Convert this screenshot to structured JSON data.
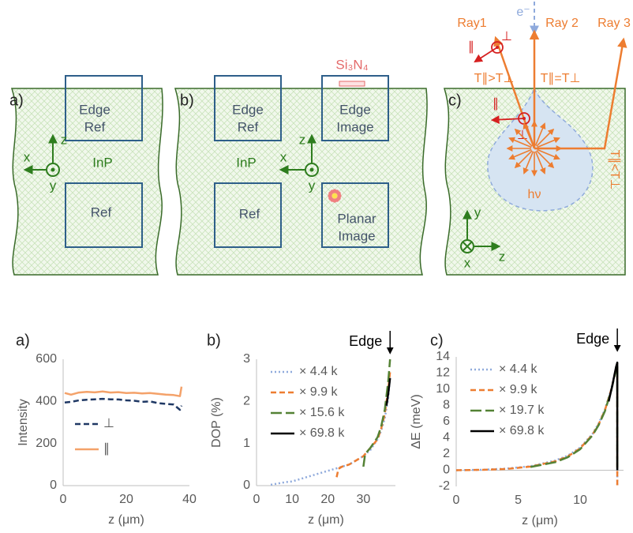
{
  "diagrams": {
    "panel_a": {
      "label": "a)",
      "edge_ref": [
        "Edge",
        "Ref"
      ],
      "ref": "Ref",
      "material": "InP",
      "axes": [
        "x",
        "y",
        "z"
      ]
    },
    "panel_b": {
      "label": "b)",
      "edge_ref": [
        "Edge",
        "Ref"
      ],
      "edge_image": [
        "Edge",
        "Image"
      ],
      "ref": "Ref",
      "planar_image": [
        "Planar",
        "Image"
      ],
      "material": "InP",
      "coating": "Si₃N₄",
      "axes": [
        "x",
        "y",
        "z"
      ]
    },
    "panel_c": {
      "label": "c)",
      "electron": "e⁻",
      "rays": [
        "Ray1",
        "Ray 2",
        "Ray 3"
      ],
      "transmission": [
        "T∥>T⊥",
        "T∥=T⊥",
        "T∥<T⊥"
      ],
      "parallel": "∥",
      "perpendicular": "⊥",
      "emission": "hν",
      "axes": [
        "x",
        "y",
        "z"
      ]
    }
  },
  "chart_data": [
    {
      "type": "line",
      "panel_label": "a)",
      "y_label": "Intensity",
      "x_label": "z (μm)",
      "xlim": [
        0,
        40
      ],
      "xticks": [
        0,
        20,
        40
      ],
      "ylim": [
        0,
        600
      ],
      "yticks": [
        0,
        200,
        400,
        600
      ],
      "legend": "lower-left",
      "series": [
        {
          "name": "⊥",
          "color": "#1f3864",
          "style": "dashed",
          "x": [
            0.5,
            2.5,
            5,
            7.5,
            10,
            12.5,
            15,
            17.5,
            20,
            22.5,
            25,
            27.5,
            30,
            32.5,
            35,
            37,
            37.5
          ],
          "values": [
            395,
            398,
            405,
            408,
            410,
            412,
            410,
            409,
            405,
            403,
            398,
            400,
            392,
            388,
            385,
            360,
            380
          ]
        },
        {
          "name": "∥",
          "color": "#f4a26a",
          "style": "solid",
          "x": [
            0.5,
            2.5,
            5,
            7.5,
            10,
            12.5,
            15,
            17.5,
            20,
            22.5,
            25,
            27.5,
            30,
            32.5,
            35,
            37,
            37.5
          ],
          "values": [
            440,
            432,
            442,
            445,
            443,
            447,
            442,
            444,
            440,
            441,
            438,
            440,
            436,
            432,
            430,
            425,
            470
          ]
        }
      ]
    },
    {
      "type": "line",
      "panel_label": "b)",
      "y_label": "DOP (%)",
      "x_label": "z (μm)",
      "annotation": "Edge",
      "xlim": [
        0,
        39
      ],
      "xticks": [
        0,
        10,
        20,
        30
      ],
      "ylim": [
        0,
        3
      ],
      "yticks": [
        0,
        1,
        2,
        3
      ],
      "legend": "upper-left",
      "series": [
        {
          "name": "× 4.4 k",
          "color": "#8faadc",
          "style": "dotted",
          "x": [
            4,
            6,
            8,
            10,
            12,
            14,
            16,
            18,
            20,
            22,
            24,
            26,
            28,
            30,
            32,
            34,
            35,
            36,
            37,
            37.5
          ],
          "values": [
            0.02,
            0.05,
            0.08,
            0.1,
            0.15,
            0.2,
            0.25,
            0.3,
            0.35,
            0.4,
            0.45,
            0.5,
            0.6,
            0.7,
            0.85,
            1.1,
            1.3,
            1.6,
            2.1,
            2.6
          ]
        },
        {
          "name": "× 9.9 k",
          "color": "#ed7d31",
          "style": "dashed",
          "x": [
            22.5,
            23,
            24,
            26,
            28,
            30,
            32,
            34,
            35,
            36,
            37,
            37.5
          ],
          "values": [
            0.2,
            0.4,
            0.45,
            0.5,
            0.6,
            0.7,
            0.9,
            1.1,
            1.35,
            1.7,
            2.3,
            2.7
          ]
        },
        {
          "name": "× 15.6 k",
          "color": "#548235",
          "style": "longdash",
          "x": [
            30,
            30.5,
            32,
            34,
            35,
            36,
            37,
            37.5
          ],
          "values": [
            0.45,
            0.75,
            0.9,
            1.15,
            1.4,
            1.8,
            2.5,
            3.0
          ]
        },
        {
          "name": "× 69.8 k",
          "color": "#000000",
          "style": "solid",
          "x": [
            36.5,
            37,
            37.5
          ],
          "values": [
            1.9,
            2.2,
            2.55
          ]
        }
      ]
    },
    {
      "type": "line",
      "panel_label": "c)",
      "y_label": "ΔE (meV)",
      "x_label": "z (μm)",
      "annotation": "Edge",
      "xlim": [
        0,
        13.5
      ],
      "xticks": [
        0,
        5,
        10
      ],
      "ylim": [
        -2,
        14
      ],
      "yticks": [
        -2,
        0,
        2,
        4,
        6,
        8,
        10,
        12,
        14
      ],
      "legend": "upper-left",
      "series": [
        {
          "name": "× 4.4 k",
          "color": "#8faadc",
          "style": "dotted",
          "x": [
            0,
            2,
            4,
            6,
            8,
            9,
            10,
            11,
            11.5,
            12,
            12.5,
            12.8,
            13,
            13,
            13
          ],
          "values": [
            0,
            0.05,
            0.2,
            0.5,
            1.2,
            1.8,
            2.8,
            4.5,
            5.8,
            7.5,
            10,
            12,
            13.3,
            5,
            -2
          ]
        },
        {
          "name": "× 9.9 k",
          "color": "#ed7d31",
          "style": "dashed",
          "x": [
            0,
            2,
            4,
            6,
            8,
            9,
            10,
            11,
            11.5,
            12,
            12.5,
            12.8,
            13,
            13,
            13
          ],
          "values": [
            0,
            0.05,
            0.15,
            0.45,
            1.1,
            1.7,
            2.7,
            4.4,
            5.7,
            7.4,
            9.9,
            11.9,
            13.2,
            4,
            -2
          ]
        },
        {
          "name": "× 19.7 k",
          "color": "#548235",
          "style": "longdash",
          "x": [
            6,
            8,
            9,
            10,
            11,
            11.5,
            12,
            12.5,
            12.8,
            13,
            13
          ],
          "values": [
            0.4,
            1.0,
            1.6,
            2.6,
            4.3,
            5.6,
            7.3,
            9.8,
            11.8,
            13.1,
            0
          ]
        },
        {
          "name": "× 69.8 k",
          "color": "#000000",
          "style": "solid",
          "x": [
            12.3,
            12.6,
            12.9,
            13,
            13
          ],
          "values": [
            8.5,
            10.5,
            12.8,
            13.3,
            0
          ]
        }
      ]
    }
  ]
}
